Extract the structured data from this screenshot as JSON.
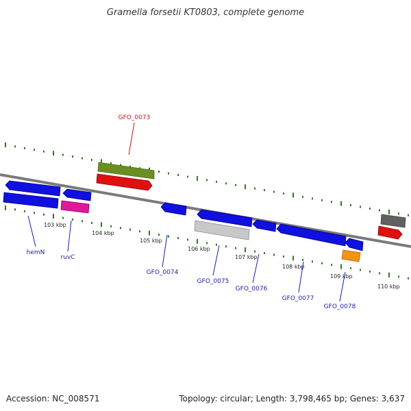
{
  "title": "Gramella forsetii KT0803, complete genome",
  "footer": {
    "accession": "Accession: NC_008571",
    "summary": "Topology: circular; Length: 3,798,465 bp; Genes: 3,637"
  },
  "colors": {
    "background": "#ffffff",
    "backbone": "#808080",
    "tick": "#2a7a1a",
    "gene_blue": "#1010e0",
    "gene_red": "#e01010",
    "gene_olive": "#6b8e23",
    "gene_magenta": "#e0189a",
    "gene_gray": "#c8c8c8",
    "gene_dark": "#606060",
    "gene_orange": "#f39410",
    "label_blue": "#1a1aa8",
    "label_red": "#cc1111"
  },
  "axis": {
    "tick_labels": [
      "103 kbp",
      "104 kbp",
      "105 kbp",
      "106 kbp",
      "107 kbp",
      "108 kbp",
      "109 kbp",
      "110 kbp"
    ]
  },
  "labels": {
    "GFO_0073": "GFO_0073",
    "hemN": "hemN",
    "ruvC": "ruvC",
    "GFO_0074": "GFO_0074",
    "GFO_0075": "GFO_0075",
    "GFO_0076": "GFO_0076",
    "GFO_0077": "GFO_0077",
    "GFO_0078": "GFO_0078"
  }
}
